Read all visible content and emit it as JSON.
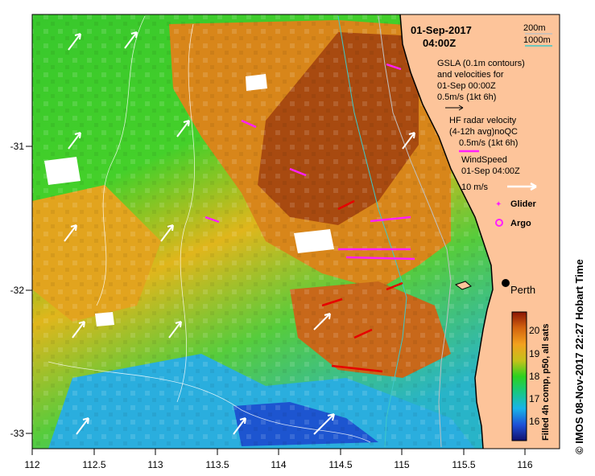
{
  "map": {
    "date_line1": "01-Sep-2017",
    "date_line2": "04:00Z",
    "x_ticks": [
      "112",
      "112.5",
      "113",
      "113.5",
      "114",
      "114.5",
      "115",
      "115.5",
      "116"
    ],
    "y_ticks": [
      "-31",
      "-32",
      "-33"
    ],
    "city_label": "Perth",
    "credit": "© IMOS 08-Nov-2017 22:27 Hobart Time"
  },
  "legend": {
    "contour_200": "200m",
    "contour_1000": "1000m",
    "gsla_line1": "GSLA (0.1m contours)",
    "gsla_line2": "and velocities for",
    "gsla_line3": "01-Sep 00:00Z",
    "gsla_line4": "0.5m/s (1kt 6h)",
    "hf_line1": "HF radar velocity",
    "hf_line2": "(4-12h avg)noQC",
    "hf_line3": "0.5m/s (1kt 6h)",
    "wind_line1": "WindSpeed",
    "wind_line2": "01-Sep 04:00Z",
    "wind_line3": "10 m/s",
    "glider_label": "Glider",
    "argo_label": "Argo",
    "colors": {
      "contour_200": "#c0c0c0",
      "contour_1000": "#3fc8c8",
      "gsla_arrow": "#000000",
      "hf_arrow": "#ff1fff",
      "wind_arrow": "#ffffff",
      "glider": "#ff1fff",
      "argo": "#ff1fff",
      "land": "#fdc49a",
      "hf_red_arrow": "#e60000"
    }
  },
  "colorbar": {
    "title": "Filled 4h comp, p50, all sats",
    "ticks": [
      "20",
      "19",
      "18",
      "17",
      "16"
    ],
    "range": [
      15.3,
      20.9
    ],
    "colors": [
      "#10106e",
      "#1d4fd6",
      "#18b4e8",
      "#17c880",
      "#2dd11e",
      "#c4c21a",
      "#f3a11d",
      "#d2620e",
      "#8a1505"
    ]
  }
}
